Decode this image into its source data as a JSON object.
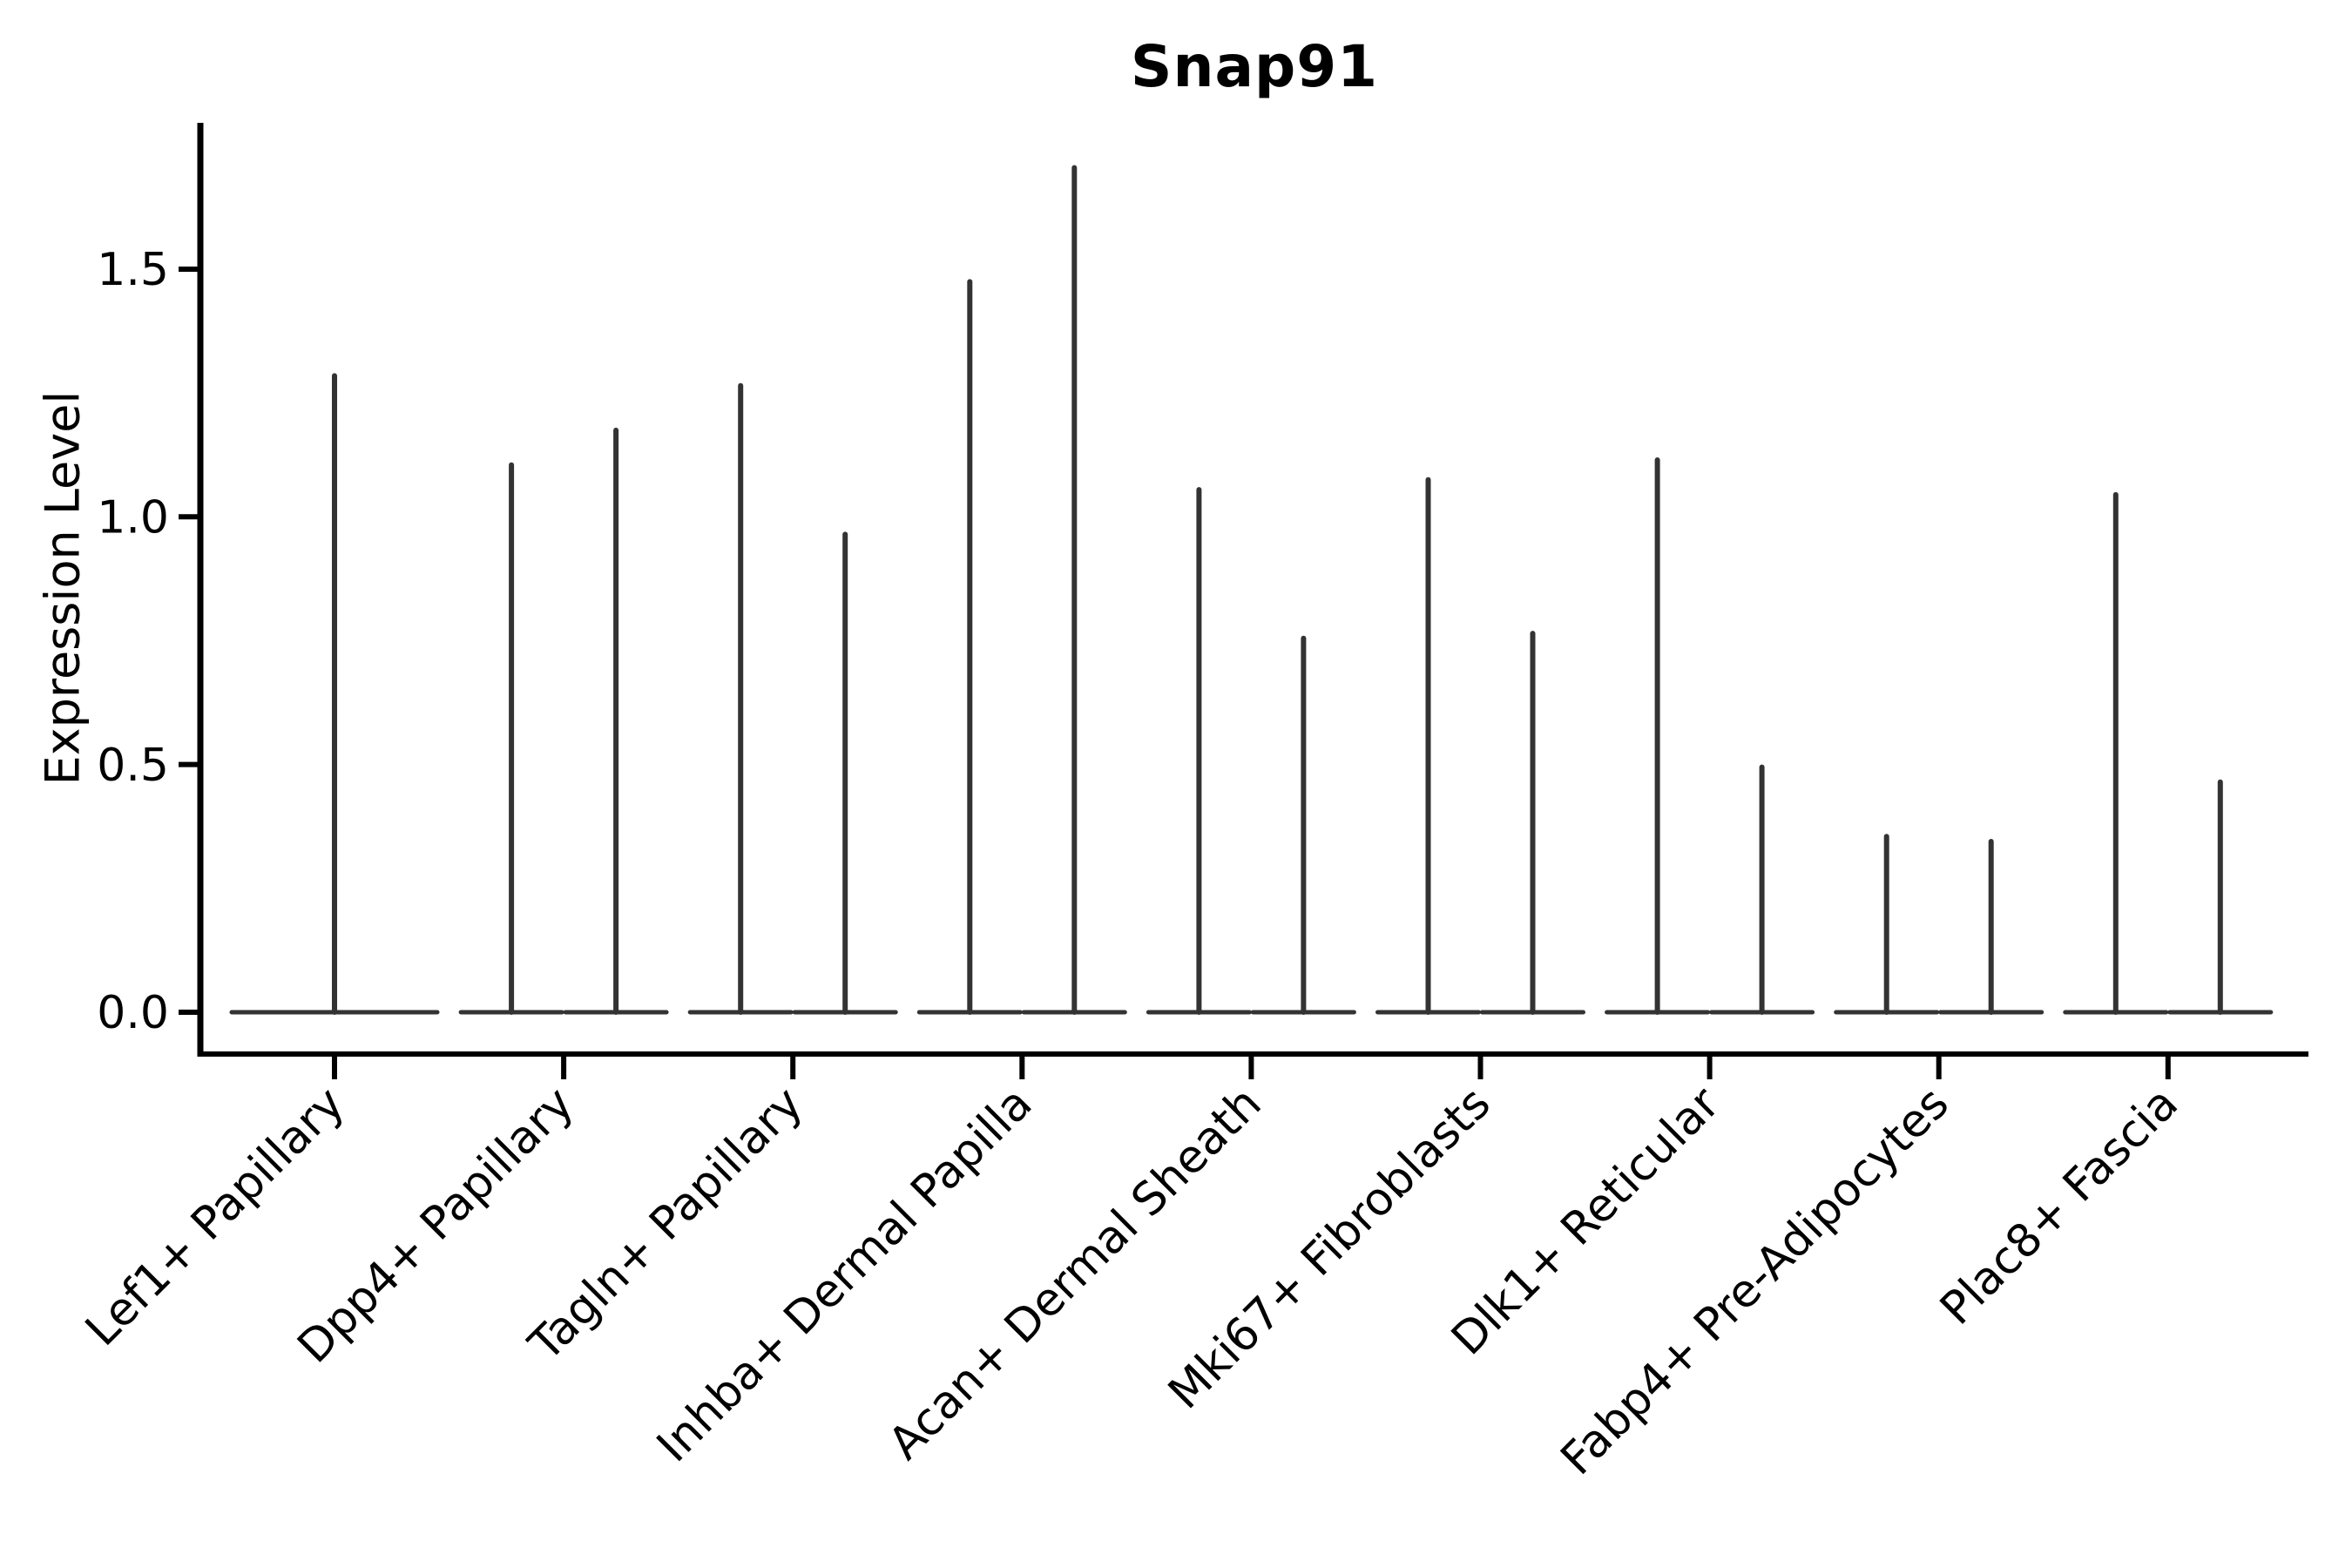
{
  "chart_data": {
    "type": "violin",
    "title": "Snap91",
    "ylabel": "Expression Level",
    "xlabel": "",
    "grid": false,
    "legend": "none",
    "ylim": [
      -0.085,
      1.795
    ],
    "ytick_labels": [
      "0.0",
      "0.5",
      "1.0",
      "1.5"
    ],
    "ytick_values": [
      0.0,
      0.5,
      1.0,
      1.5
    ],
    "categories": [
      "Lef1+ Papillary",
      "Dpp4+ Papillary",
      "Tagln+ Papillary",
      "Inhba+ Dermal Papilla",
      "Acan+ Dermal Sheath",
      "Mki67+ Fibroblasts",
      "Dlk1+ Reticular",
      "Fabp4+ Pre-Adipocytes",
      "Plac8+ Fascia"
    ],
    "violin_peaks_per_category": [
      [
        1.29
      ],
      [
        1.11,
        1.18
      ],
      [
        1.27,
        0.97
      ],
      [
        1.48,
        1.71
      ],
      [
        1.06,
        0.76
      ],
      [
        1.08,
        0.77
      ],
      [
        1.12,
        0.5
      ],
      [
        0.36,
        0.35
      ],
      [
        1.05,
        0.47
      ]
    ],
    "violin_shape_note": "Each violin is a thin spike rising from a wide flat base at expression 0 (most cells at 0). First category has one full-width violin; all others have two half-width violins.",
    "colors": {
      "violin_stroke": "#333333",
      "axis": "#000000",
      "text": "#000000",
      "background": "#ffffff"
    }
  }
}
